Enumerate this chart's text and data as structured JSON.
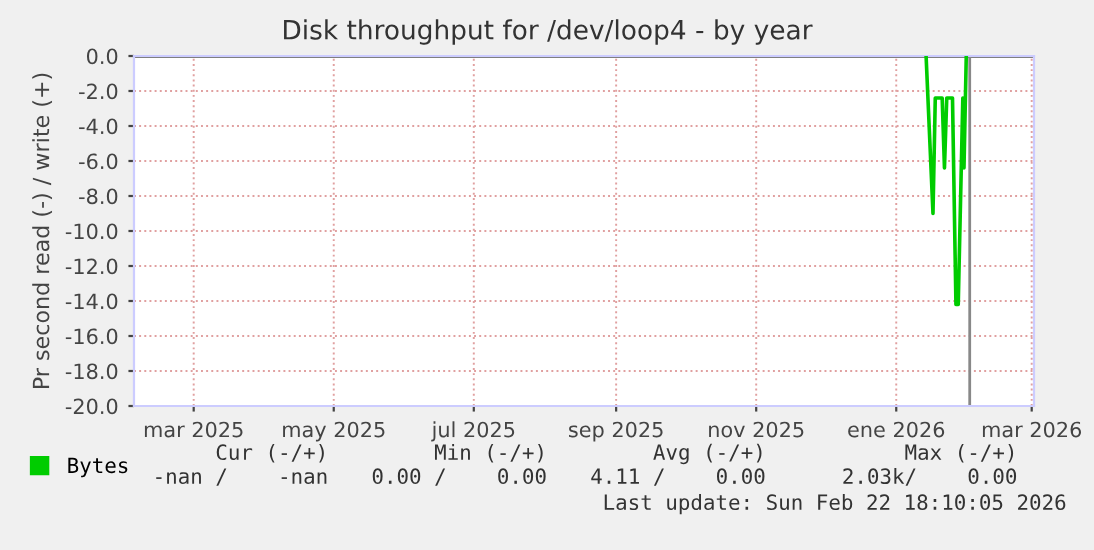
{
  "chart_data": {
    "type": "line",
    "title": "Disk throughput for /dev/loop4 - by year",
    "ylabel": "Pr second read (-) / write (+)",
    "x": [
      "2026-01-14",
      "2026-01-17",
      "2026-01-18",
      "2026-01-21",
      "2026-01-22",
      "2026-01-23",
      "2026-01-25T12:00",
      "2026-01-27",
      "2026-01-28",
      "2026-01-30",
      "2026-01-30T12:00",
      "2026-01-31T12:00"
    ],
    "series": [
      {
        "name": "Bytes",
        "color": "#00cc00",
        "values": [
          0,
          -9.0,
          -2.4,
          -2.4,
          -6.4,
          -2.4,
          -2.4,
          -14.2,
          -14.2,
          -2.4,
          -6.4,
          0
        ]
      }
    ],
    "xlim": [
      "2025-02-03",
      "2026-03-02"
    ],
    "xticks": [
      {
        "value": "2025-03-01",
        "label": "mar 2025"
      },
      {
        "value": "2025-05-01",
        "label": "may 2025"
      },
      {
        "value": "2025-07-01",
        "label": "jul 2025"
      },
      {
        "value": "2025-09-01",
        "label": "sep 2025"
      },
      {
        "value": "2025-11-01",
        "label": "nov 2025"
      },
      {
        "value": "2026-01-01",
        "label": "ene 2026"
      },
      {
        "value": "2026-03-01",
        "label": "mar 2026"
      }
    ],
    "ylim": [
      -20,
      0
    ],
    "yticks": [
      {
        "value": 0,
        "label": "0.0"
      },
      {
        "value": -2,
        "label": "-2.0"
      },
      {
        "value": -4,
        "label": "-4.0"
      },
      {
        "value": -6,
        "label": "-6.0"
      },
      {
        "value": -8,
        "label": "-8.0"
      },
      {
        "value": -10,
        "label": "-10.0"
      },
      {
        "value": -12,
        "label": "-12.0"
      },
      {
        "value": -14,
        "label": "-14.0"
      },
      {
        "value": -16,
        "label": "-16.0"
      },
      {
        "value": -18,
        "label": "-18.0"
      },
      {
        "value": -20,
        "label": "-20.0"
      }
    ],
    "ref_lines": [
      {
        "axis": "y",
        "value": 0,
        "label": null,
        "color": "#000000"
      },
      {
        "axis": "x",
        "value": "2026-02-02",
        "label": null,
        "color": "#888888"
      }
    ],
    "grid": true,
    "legend": "bottom left",
    "marker": "none",
    "line_style": "solid",
    "annotations": [
      "Cur (-/+)",
      "Min (-/+)",
      "Avg (-/+)",
      "Max (-/+)",
      "-nan /    -nan",
      "0.00 /    0.00",
      "4.11 /    0.00",
      "2.03k/    0.00",
      "Last update: Sun Feb 22 18:10:05 2026"
    ]
  }
}
